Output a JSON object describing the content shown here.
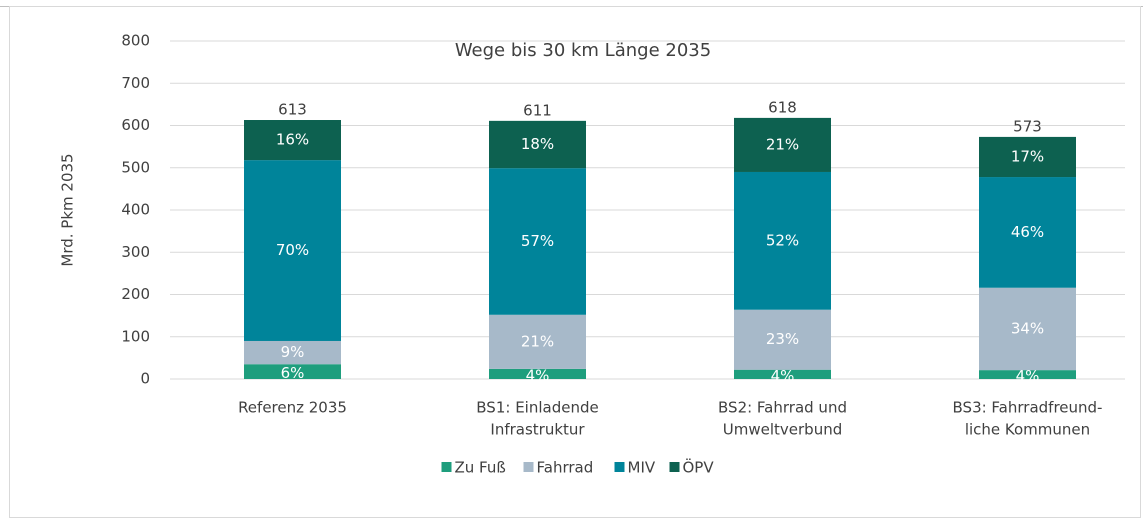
{
  "chart_data": {
    "type": "stacked_bar",
    "title": "Wege bis 30 km Länge 2035",
    "y_label": "Mrd. Pkm 2035",
    "categories": [
      [
        "Referenz 2035"
      ],
      [
        "BS1: Einladende",
        "Infrastruktur"
      ],
      [
        "BS2: Fahrrad und",
        "Umweltverbund"
      ],
      [
        "BS3: Fahrradfreund-",
        "liche Kommunen"
      ]
    ],
    "series": [
      {
        "name": "Zu Fuß",
        "color": "#1e9e7d",
        "values": [
          35,
          24,
          22,
          21
        ],
        "labels": [
          "6%",
          "4%",
          "4%",
          "4%"
        ]
      },
      {
        "name": "Fahrrad",
        "color": "#a7b9c9",
        "values": [
          55,
          128,
          142,
          195
        ],
        "labels": [
          "9%",
          "21%",
          "23%",
          "34%"
        ]
      },
      {
        "name": "MIV",
        "color": "#00849a",
        "values": [
          428,
          347,
          326,
          262
        ],
        "labels": [
          "70%",
          "57%",
          "52%",
          "46%"
        ]
      },
      {
        "name": "ÖPV",
        "color": "#0d6150",
        "values": [
          95,
          112,
          128,
          95
        ],
        "labels": [
          "16%",
          "18%",
          "21%",
          "17%"
        ]
      }
    ],
    "totals": [
      613,
      611,
      618,
      573
    ],
    "ylim": [
      0,
      800
    ],
    "yticks": [
      0,
      100,
      200,
      300,
      400,
      500,
      600,
      700,
      800
    ],
    "grid": true,
    "legend": "bottom"
  }
}
